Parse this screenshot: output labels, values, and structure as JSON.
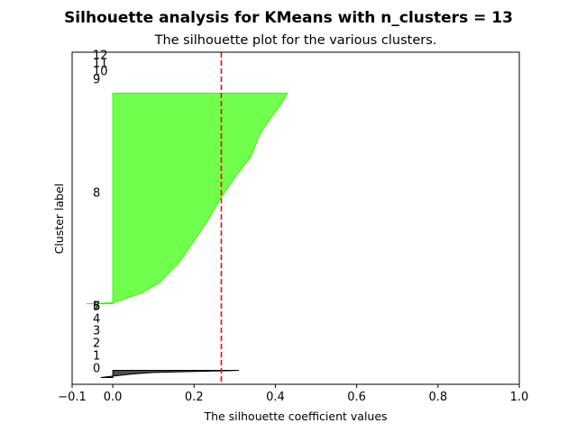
{
  "chart_data": {
    "type": "area",
    "suptitle": "Silhouette analysis for KMeans with n_clusters = 13",
    "title": "The silhouette plot for the various clusters.",
    "xlabel": "The silhouette coefficient values",
    "ylabel": "Cluster label",
    "xlim": [
      -0.1,
      1.0
    ],
    "x_ticks": [
      -0.1,
      0.0,
      0.2,
      0.4,
      0.6,
      0.8,
      1.0
    ],
    "x_tick_labels": [
      "−0.1",
      "0.0",
      "0.2",
      "0.4",
      "0.6",
      "0.8",
      "1.0"
    ],
    "grid": false,
    "average_silhouette_score": 0.267,
    "average_line_color": "#ff0000",
    "clusters": [
      {
        "label": "0",
        "color": "#000000",
        "profile": [
          [
            0,
            0.31
          ],
          [
            0.05,
            0.29
          ],
          [
            0.15,
            0.2
          ],
          [
            0.3,
            0.1
          ],
          [
            0.5,
            0.05
          ],
          [
            0.8,
            0.0
          ],
          [
            1,
            -0.03
          ]
        ]
      },
      {
        "label": "1",
        "profile": []
      },
      {
        "label": "2",
        "profile": []
      },
      {
        "label": "3",
        "profile": []
      },
      {
        "label": "4",
        "profile": []
      },
      {
        "label": "5",
        "profile": []
      },
      {
        "label": "6",
        "profile": []
      },
      {
        "label": "7",
        "profile": []
      },
      {
        "label": "8",
        "color": "#33ff00",
        "profile": [
          [
            0,
            0.43
          ],
          [
            0.05,
            0.415
          ],
          [
            0.1,
            0.395
          ],
          [
            0.2,
            0.36
          ],
          [
            0.3,
            0.34
          ],
          [
            0.4,
            0.3
          ],
          [
            0.5,
            0.265
          ],
          [
            0.6,
            0.235
          ],
          [
            0.7,
            0.2
          ],
          [
            0.8,
            0.165
          ],
          [
            0.9,
            0.115
          ],
          [
            0.95,
            0.07
          ],
          [
            0.995,
            0.0
          ],
          [
            1,
            -0.065
          ]
        ]
      },
      {
        "label": "9",
        "profile": []
      },
      {
        "label": "10",
        "profile": []
      },
      {
        "label": "11",
        "profile": []
      },
      {
        "label": "12",
        "profile": []
      }
    ]
  }
}
